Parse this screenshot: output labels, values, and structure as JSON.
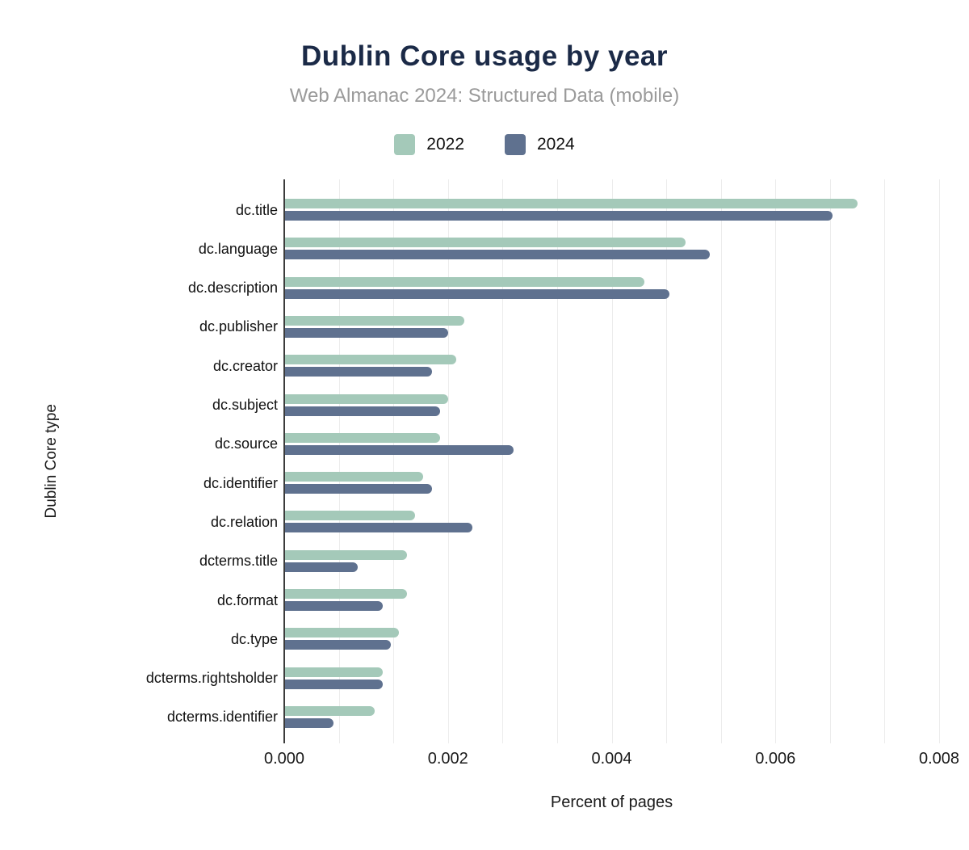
{
  "colors": {
    "background": "#ffffff",
    "title": "#1b2a47",
    "subtitle": "#9a9a9a",
    "axis_line": "#3c3c3c",
    "gridline": "#ececec",
    "label_text": "#111111",
    "series_2022": "#a4c9b9",
    "series_2024": "#5f718f"
  },
  "chart_data": {
    "type": "bar",
    "orientation": "horizontal",
    "title": "Dublin Core usage by year",
    "subtitle": "Web Almanac 2024: Structured Data (mobile)",
    "xlabel": "Percent of pages",
    "ylabel": "Dublin Core type",
    "xlim": [
      0,
      0.008
    ],
    "x_ticks": [
      {
        "value": 0,
        "label": "0.000"
      },
      {
        "value": 0.002,
        "label": "0.002"
      },
      {
        "value": 0.004,
        "label": "0.004"
      },
      {
        "value": 0.006,
        "label": "0.006"
      },
      {
        "value": 0.008,
        "label": "0.008"
      }
    ],
    "grid": "vertical minor gridlines, 3 divisions per major tick",
    "legend_position": "top",
    "categories": [
      "dc.title",
      "dc.language",
      "dc.description",
      "dc.publisher",
      "dc.creator",
      "dc.subject",
      "dc.source",
      "dc.identifier",
      "dc.relation",
      "dcterms.title",
      "dc.format",
      "dc.type",
      "dcterms.rightsholder",
      "dcterms.identifier"
    ],
    "series": [
      {
        "name": "2022",
        "color": "#a4c9b9",
        "values": [
          0.007,
          0.0049,
          0.0044,
          0.0022,
          0.0021,
          0.002,
          0.0019,
          0.0017,
          0.0016,
          0.0015,
          0.0015,
          0.0014,
          0.0012,
          0.0011
        ]
      },
      {
        "name": "2024",
        "color": "#5f718f",
        "values": [
          0.0067,
          0.0052,
          0.0047,
          0.002,
          0.0018,
          0.0019,
          0.0028,
          0.0018,
          0.0023,
          0.0009,
          0.0012,
          0.0013,
          0.0012,
          0.0006
        ]
      }
    ]
  }
}
